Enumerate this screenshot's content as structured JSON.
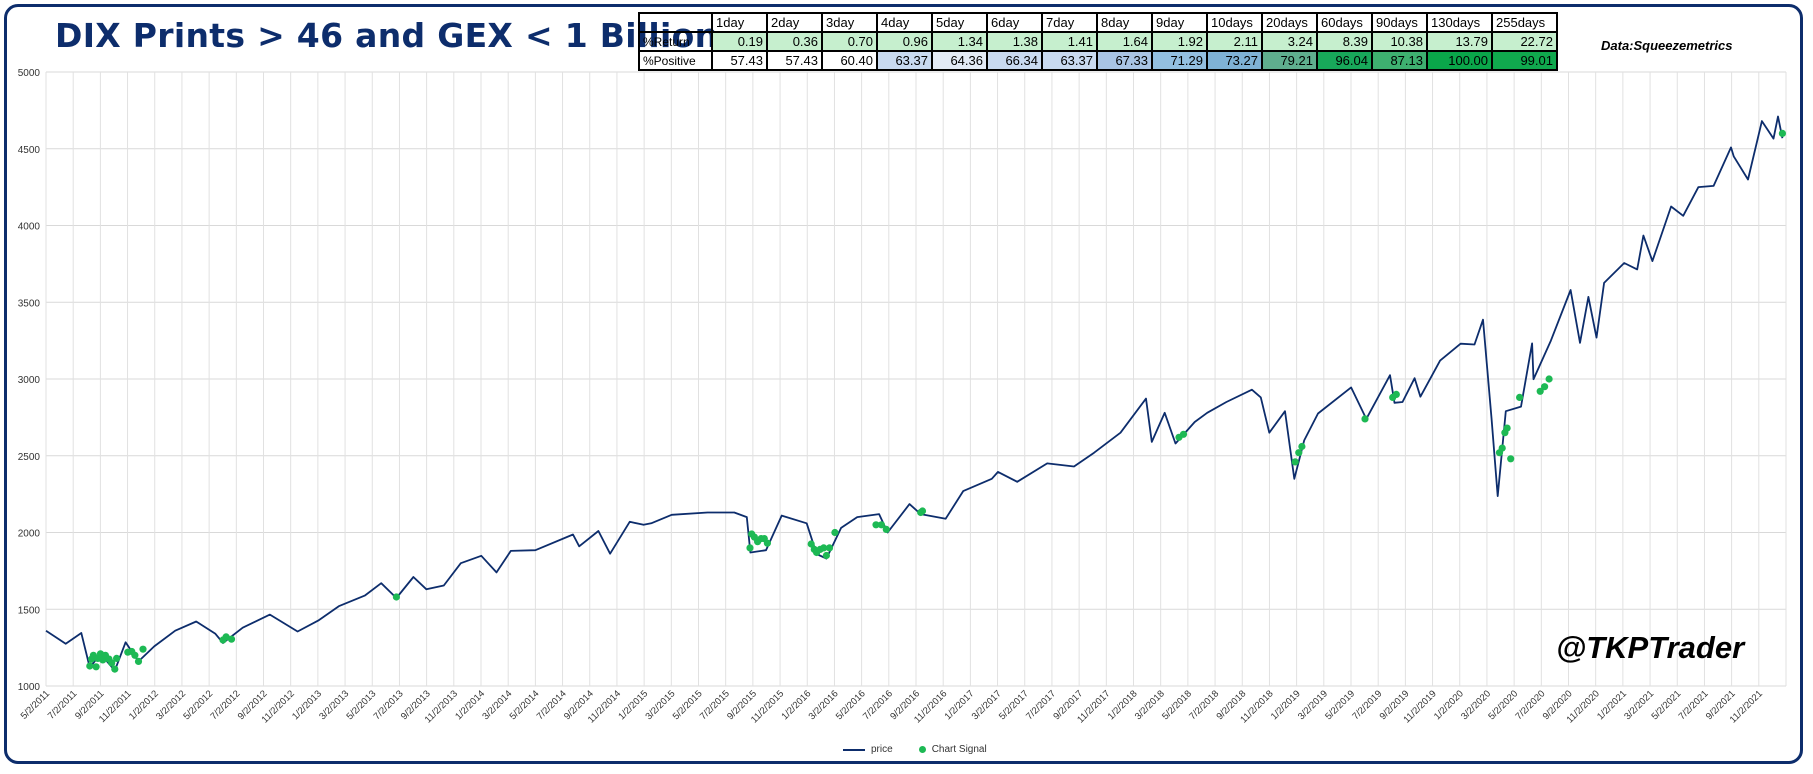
{
  "title": "DIX Prints > 46 and GEX < 1 Billion",
  "source_text": "Data:Squeezemetrics",
  "watermark": "@TKPTrader",
  "stats_table": {
    "header": [
      "",
      "1day",
      "2day",
      "3day",
      "4day",
      "5day",
      "6day",
      "7day",
      "8day",
      "9day",
      "10days",
      "20days",
      "60days",
      "90days",
      "130days",
      "255days"
    ],
    "rows": [
      {
        "label": "%Return",
        "values": [
          "0.19",
          "0.36",
          "0.70",
          "0.96",
          "1.34",
          "1.38",
          "1.41",
          "1.64",
          "1.92",
          "2.11",
          "3.24",
          "8.39",
          "10.38",
          "13.79",
          "22.72"
        ],
        "colors": [
          "#c6efce",
          "#c6efce",
          "#c6efce",
          "#c6efce",
          "#c6efce",
          "#c6efce",
          "#c6efce",
          "#c6efce",
          "#c6efce",
          "#c6efce",
          "#c6efce",
          "#c6efce",
          "#c6efce",
          "#c6efce",
          "#c6efce"
        ]
      },
      {
        "label": "%Positive",
        "values": [
          "57.43",
          "57.43",
          "60.40",
          "63.37",
          "64.36",
          "66.34",
          "63.37",
          "67.33",
          "71.29",
          "73.27",
          "79.21",
          "96.04",
          "87.13",
          "100.00",
          "99.01"
        ],
        "colors": [
          "#ffffff",
          "#ffffff",
          "#ffffff",
          "#c9daf0",
          "#e3ebf6",
          "#c9daf0",
          "#c9daf0",
          "#a9c4e4",
          "#93bfe0",
          "#7fb2d6",
          "#5fae8e",
          "#18a85a",
          "#3eb070",
          "#0aa64a",
          "#10a84e"
        ]
      }
    ]
  },
  "chart_data": {
    "type": "line",
    "title": "DIX Prints > 46 and GEX < 1 Billion",
    "xlabel": "",
    "ylabel": "",
    "ylim": [
      1000,
      5000
    ],
    "yticks": [
      1000,
      1500,
      2000,
      2500,
      3000,
      3500,
      4000,
      4500,
      5000
    ],
    "grid": true,
    "legend_position": "bottom",
    "xtick_labels": [
      "5/2/2011",
      "7/2/2011",
      "9/2/2011",
      "11/2/2011",
      "1/2/2012",
      "3/2/2012",
      "5/2/2012",
      "7/2/2012",
      "9/2/2012",
      "11/2/2012",
      "1/2/2013",
      "3/2/2013",
      "5/2/2013",
      "7/2/2013",
      "9/2/2013",
      "11/2/2013",
      "1/2/2014",
      "3/2/2014",
      "5/2/2014",
      "7/2/2014",
      "9/2/2014",
      "11/2/2014",
      "1/2/2015",
      "3/2/2015",
      "5/2/2015",
      "7/2/2015",
      "9/2/2015",
      "11/2/2015",
      "1/2/2016",
      "3/2/2016",
      "5/2/2016",
      "7/2/2016",
      "9/2/2016",
      "11/2/2016",
      "1/2/2017",
      "3/2/2017",
      "5/2/2017",
      "7/2/2017",
      "9/2/2017",
      "11/2/2017",
      "1/2/2018",
      "3/2/2018",
      "5/2/2018",
      "7/2/2018",
      "9/2/2018",
      "11/2/2018",
      "1/2/2019",
      "3/2/2019",
      "5/2/2019",
      "7/2/2019",
      "9/2/2019",
      "11/2/2019",
      "1/2/2020",
      "3/2/2020",
      "5/2/2020",
      "7/2/2020",
      "9/2/2020",
      "11/2/2020",
      "1/2/2021",
      "3/2/2021",
      "5/2/2021",
      "7/2/2021",
      "9/2/2021",
      "11/2/2021"
    ],
    "series": [
      {
        "name": "price",
        "kind": "line",
        "color": "#0d2d6c",
        "x": [
          "2011-05-02",
          "2011-06-15",
          "2011-07-20",
          "2011-08-08",
          "2011-09-01",
          "2011-10-03",
          "2011-10-27",
          "2011-11-25",
          "2011-12-30",
          "2012-02-15",
          "2012-04-02",
          "2012-05-15",
          "2012-06-01",
          "2012-07-15",
          "2012-09-14",
          "2012-11-15",
          "2012-12-31",
          "2013-02-15",
          "2013-04-15",
          "2013-05-21",
          "2013-06-24",
          "2013-08-01",
          "2013-08-30",
          "2013-10-08",
          "2013-11-15",
          "2013-12-31",
          "2014-02-03",
          "2014-03-07",
          "2014-05-01",
          "2014-07-24",
          "2014-08-07",
          "2014-09-19",
          "2014-10-15",
          "2014-11-28",
          "2014-12-29",
          "2015-01-15",
          "2015-03-02",
          "2015-05-21",
          "2015-07-20",
          "2015-08-17",
          "2015-08-25",
          "2015-09-29",
          "2015-11-03",
          "2015-12-29",
          "2016-01-20",
          "2016-02-11",
          "2016-03-15",
          "2016-04-20",
          "2016-06-08",
          "2016-06-27",
          "2016-08-15",
          "2016-09-09",
          "2016-11-04",
          "2016-12-13",
          "2017-02-15",
          "2017-03-01",
          "2017-04-13",
          "2017-06-19",
          "2017-08-18",
          "2017-10-02",
          "2017-11-30",
          "2018-01-26",
          "2018-02-08",
          "2018-03-09",
          "2018-04-02",
          "2018-05-15",
          "2018-06-12",
          "2018-07-25",
          "2018-09-20",
          "2018-10-10",
          "2018-10-29",
          "2018-12-03",
          "2018-12-24",
          "2019-01-15",
          "2019-02-15",
          "2019-04-30",
          "2019-06-03",
          "2019-07-26",
          "2019-08-05",
          "2019-08-23",
          "2019-09-19",
          "2019-10-02",
          "2019-11-15",
          "2019-12-31",
          "2020-01-31",
          "2020-02-19",
          "2020-03-09",
          "2020-03-23",
          "2020-04-10",
          "2020-05-14",
          "2020-06-08",
          "2020-06-11",
          "2020-07-20",
          "2020-09-02",
          "2020-09-23",
          "2020-10-12",
          "2020-10-30",
          "2020-11-16",
          "2020-12-31",
          "2021-01-29",
          "2021-02-12",
          "2021-03-04",
          "2021-04-15",
          "2021-05-12",
          "2021-06-15",
          "2021-07-19",
          "2021-08-27",
          "2021-09-02",
          "2021-10-04",
          "2021-11-04",
          "2021-11-30",
          "2021-12-10",
          "2021-12-20"
        ],
        "y": [
          1360,
          1275,
          1345,
          1120,
          1210,
          1100,
          1285,
          1160,
          1258,
          1360,
          1420,
          1340,
          1280,
          1380,
          1465,
          1355,
          1426,
          1520,
          1590,
          1670,
          1573,
          1710,
          1630,
          1655,
          1800,
          1848,
          1740,
          1880,
          1885,
          1987,
          1910,
          2010,
          1862,
          2070,
          2050,
          2060,
          2115,
          2130,
          2130,
          2100,
          1870,
          1885,
          2110,
          2060,
          1860,
          1830,
          2030,
          2100,
          2120,
          2000,
          2185,
          2120,
          2090,
          2270,
          2350,
          2395,
          2330,
          2450,
          2430,
          2520,
          2650,
          2872,
          2590,
          2780,
          2580,
          2720,
          2780,
          2850,
          2930,
          2880,
          2650,
          2790,
          2350,
          2600,
          2775,
          2945,
          2740,
          3025,
          2845,
          2850,
          3005,
          2885,
          3120,
          3230,
          3225,
          3386,
          2746,
          2237,
          2790,
          2820,
          3232,
          2999,
          3250,
          3580,
          3236,
          3535,
          3270,
          3626,
          3756,
          3714,
          3935,
          3768,
          4124,
          4063,
          4250,
          4258,
          4509,
          4451,
          4300,
          4680,
          4566,
          4710,
          4569
        ]
      },
      {
        "name": "Chart Signal",
        "kind": "scatter",
        "color": "#1db954",
        "x": [
          "2011-08-08",
          "2011-08-12",
          "2011-08-16",
          "2011-08-22",
          "2011-08-26",
          "2011-09-01",
          "2011-09-06",
          "2011-09-12",
          "2011-09-20",
          "2011-09-26",
          "2011-10-03",
          "2011-10-07",
          "2011-11-01",
          "2011-11-10",
          "2011-11-17",
          "2011-11-25",
          "2011-12-05",
          "2012-06-01",
          "2012-06-08",
          "2012-06-20",
          "2013-06-24",
          "2015-08-24",
          "2015-08-28",
          "2015-09-03",
          "2015-09-10",
          "2015-09-18",
          "2015-09-25",
          "2015-10-02",
          "2016-01-08",
          "2016-01-15",
          "2016-01-20",
          "2016-01-28",
          "2016-02-05",
          "2016-02-11",
          "2016-02-18",
          "2016-03-01",
          "2016-06-01",
          "2016-06-13",
          "2016-06-24",
          "2016-09-09",
          "2016-09-13",
          "2018-04-10",
          "2018-04-20",
          "2018-12-26",
          "2019-01-03",
          "2019-01-10",
          "2019-05-31",
          "2019-08-01",
          "2019-08-09",
          "2020-03-27",
          "2020-04-02",
          "2020-04-08",
          "2020-04-13",
          "2020-04-21",
          "2020-05-11",
          "2020-06-26",
          "2020-07-06",
          "2020-07-16"
        ],
        "y": [
          1130,
          1175,
          1200,
          1125,
          1180,
          1210,
          1170,
          1200,
          1175,
          1150,
          1110,
          1180,
          1220,
          1225,
          1200,
          1160,
          1240,
          1300,
          1320,
          1305,
          1580,
          1900,
          1990,
          1970,
          1940,
          1960,
          1960,
          1930,
          1925,
          1890,
          1870,
          1890,
          1900,
          1850,
          1900,
          2000,
          2050,
          2050,
          2020,
          2130,
          2140,
          2620,
          2640,
          2460,
          2520,
          2560,
          2740,
          2880,
          2900,
          2520,
          2550,
          2650,
          2680,
          2480,
          2880,
          2920,
          2950,
          3000
        ]
      }
    ]
  }
}
